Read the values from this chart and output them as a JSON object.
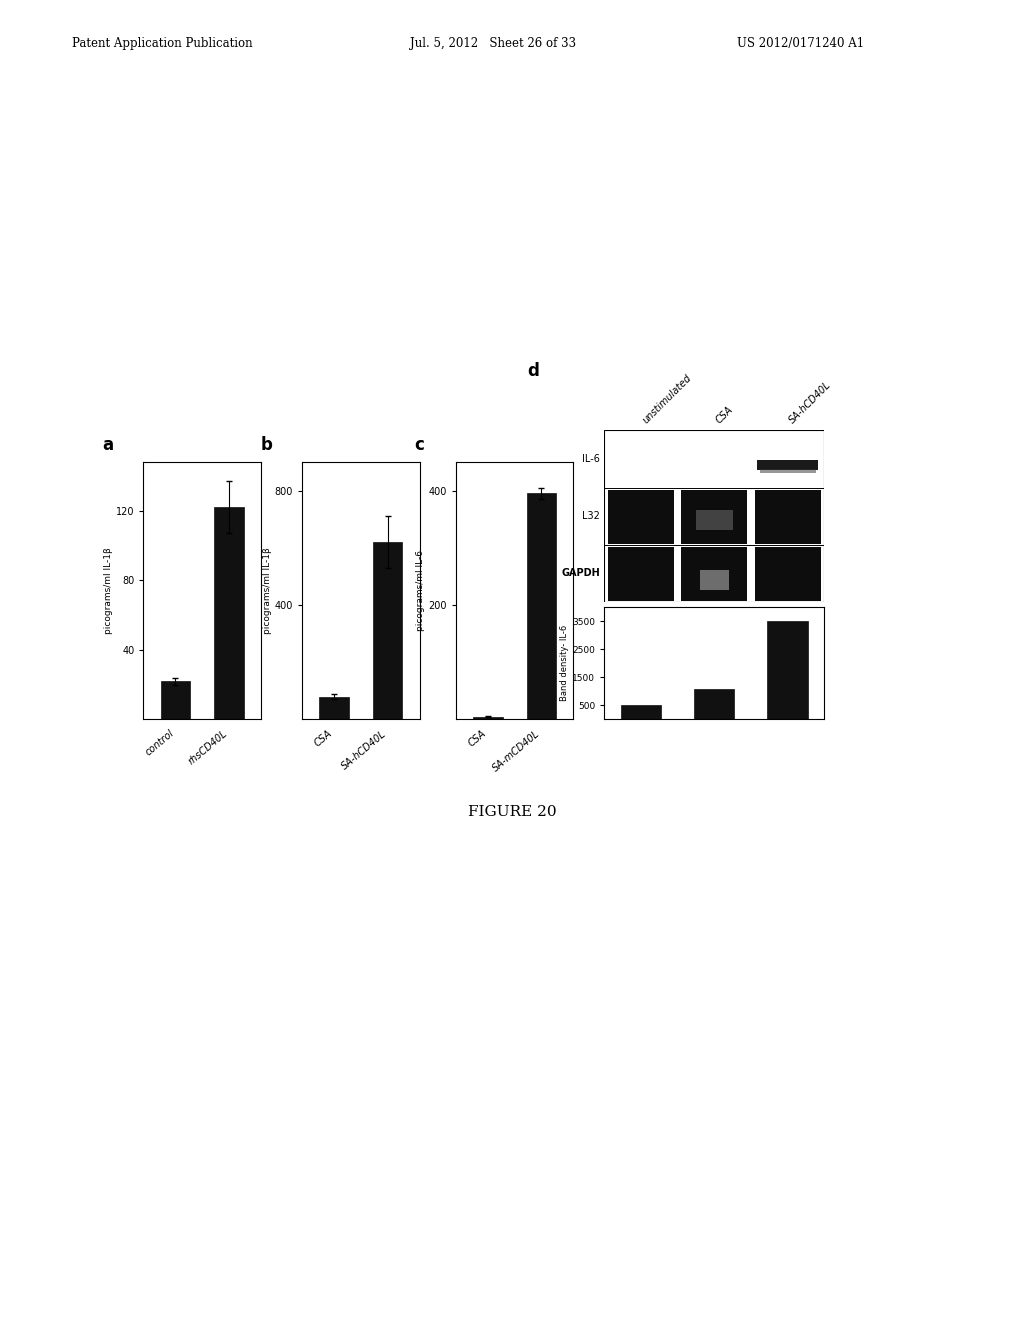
{
  "header_left": "Patent Application Publication",
  "header_mid": "Jul. 5, 2012   Sheet 26 of 33",
  "header_right": "US 2012/0171240 A1",
  "figure_label": "FIGURE 20",
  "panel_a": {
    "label": "a",
    "categories": [
      "control",
      "rhsCD40L"
    ],
    "values": [
      22,
      122
    ],
    "error": [
      2,
      15
    ],
    "ylabel": "picograms/ml IL-1β",
    "yticks": [
      40,
      80,
      120
    ],
    "ylim": [
      0,
      148
    ]
  },
  "panel_b": {
    "label": "b",
    "categories": [
      "CSA",
      "SA-hCD40L"
    ],
    "values": [
      80,
      620
    ],
    "error": [
      8,
      90
    ],
    "ylabel": "picograms/ml IL-1β",
    "yticks": [
      400,
      800
    ],
    "ylim": [
      0,
      900
    ]
  },
  "panel_c": {
    "label": "c",
    "categories": [
      "CSA",
      "SA-mCD40L"
    ],
    "values": [
      5,
      395
    ],
    "error": [
      1,
      10
    ],
    "ylabel": "picograms/ml IL-6",
    "yticks": [
      200,
      400
    ],
    "ylim": [
      0,
      450
    ]
  },
  "panel_d": {
    "label": "d",
    "col_labels": [
      "unstimulated",
      "CSA",
      "SA-hCD40L"
    ],
    "row_labels": [
      "IL-6",
      "L32",
      "GAPDH"
    ],
    "bar_ylabel": "Band density- IL-6",
    "bar_values": [
      500,
      1100,
      3500
    ],
    "bar_yticks": [
      500,
      1500,
      2500,
      3500
    ],
    "bar_ylim": [
      0,
      4000
    ]
  },
  "bar_color": "#111111",
  "bg_color": "#ffffff"
}
